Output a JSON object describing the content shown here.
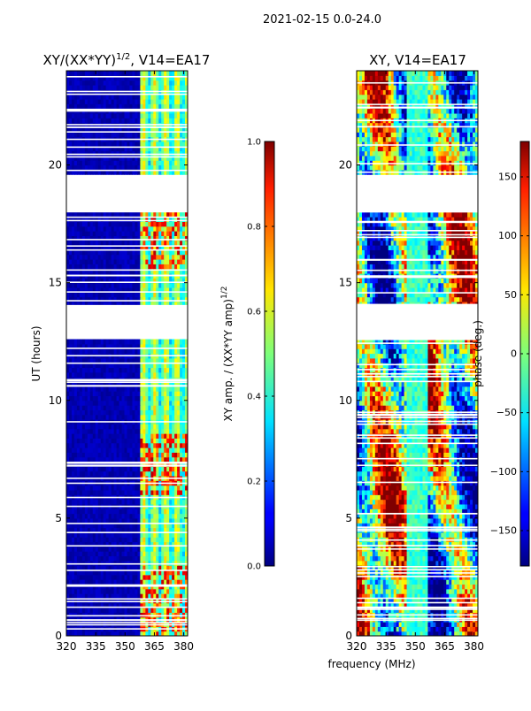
{
  "page_title": "2021-02-15 0.0-24.0",
  "xlabel_shared": "frequency (MHz)",
  "chart_data": [
    {
      "type": "heatmap",
      "title": "XY/(XX*YY)",
      "title_exponent": "1/2",
      "title_suffix": ", V14=EA17",
      "xlim": [
        320,
        382
      ],
      "ylim": [
        0,
        24
      ],
      "x_ticks": [
        320,
        335,
        350,
        365,
        380
      ],
      "y_ticks": [
        0,
        5,
        10,
        15,
        20
      ],
      "ylabel": "UT (hours)",
      "colorbar": {
        "label": "XY amp. / (XX*YY amp)",
        "label_exponent": "1/2",
        "range": [
          0.0,
          1.0
        ],
        "ticks": [
          "0.0",
          "0.2",
          "0.4",
          "0.6",
          "0.8",
          "1.0"
        ],
        "colormap": "jet"
      },
      "blank_time_ranges": [
        [
          18.1,
          19.5
        ],
        [
          12.6,
          13.9
        ]
      ],
      "active_freq_range": [
        358,
        380
      ]
    },
    {
      "type": "heatmap",
      "title": "XY, V14=EA17",
      "xlim": [
        320,
        382
      ],
      "ylim": [
        0,
        24
      ],
      "x_ticks": [
        320,
        335,
        350,
        365,
        380
      ],
      "y_ticks": [
        0,
        5,
        10,
        15,
        20
      ],
      "colorbar": {
        "label": "phase (deg.)",
        "range": [
          -180,
          180
        ],
        "ticks": [
          "-150",
          "-100",
          "-50",
          "0",
          "50",
          "100",
          "150"
        ],
        "colormap": "jet"
      },
      "blank_time_ranges": [
        [
          18.1,
          19.5
        ],
        [
          12.6,
          14.1
        ]
      ]
    }
  ],
  "colors": {
    "jet_low": "#00007f",
    "jet_mid": "#7fff7f",
    "jet_high": "#7f0000"
  }
}
